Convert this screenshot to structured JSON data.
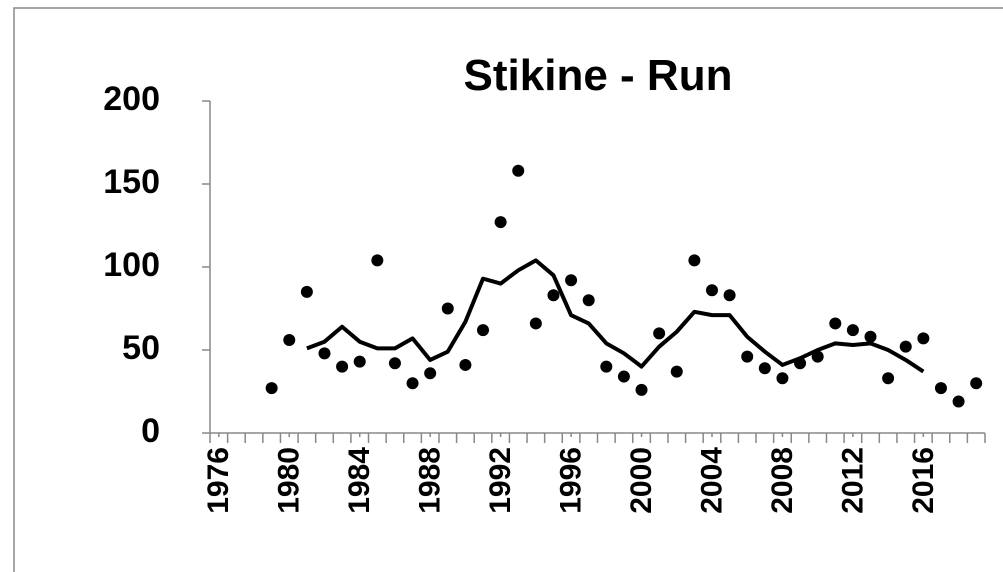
{
  "chart_data": {
    "type": "scatter",
    "title": "Stikine - Run",
    "x": [
      1979,
      1980,
      1981,
      1982,
      1983,
      1984,
      1985,
      1986,
      1987,
      1988,
      1989,
      1990,
      1991,
      1992,
      1993,
      1994,
      1995,
      1996,
      1997,
      1998,
      1999,
      2000,
      2001,
      2002,
      2003,
      2004,
      2005,
      2006,
      2007,
      2008,
      2009,
      2010,
      2011,
      2012,
      2013,
      2014,
      2015,
      2016,
      2017,
      2018,
      2019
    ],
    "series": [
      {
        "style": "points",
        "color": "#000000",
        "values": [
          27,
          56,
          85,
          48,
          40,
          43,
          104,
          42,
          30,
          36,
          75,
          41,
          62,
          127,
          158,
          66,
          83,
          92,
          80,
          40,
          34,
          26,
          60,
          37,
          104,
          86,
          83,
          46,
          39,
          33,
          42,
          46,
          66,
          62,
          58,
          33,
          52,
          57,
          27,
          19,
          30
        ]
      },
      {
        "style": "line",
        "color": "#000000",
        "values": [
          null,
          null,
          51,
          55,
          64,
          55,
          51,
          51,
          57,
          44,
          49,
          67,
          93,
          90,
          98,
          104,
          95,
          71,
          66,
          54,
          48,
          40,
          52,
          61,
          73,
          71,
          71,
          58,
          49,
          41,
          45,
          50,
          54,
          53,
          54,
          50,
          44,
          37,
          null,
          null,
          null
        ]
      }
    ],
    "xlim": [
      1975.5,
      2019.5
    ],
    "xticks": [
      1976,
      1980,
      1984,
      1988,
      1992,
      1996,
      2000,
      2004,
      2008,
      2012,
      2016
    ],
    "ylim": [
      0,
      200
    ],
    "yticks": [
      0,
      50,
      100,
      150,
      200
    ],
    "grid": false
  }
}
